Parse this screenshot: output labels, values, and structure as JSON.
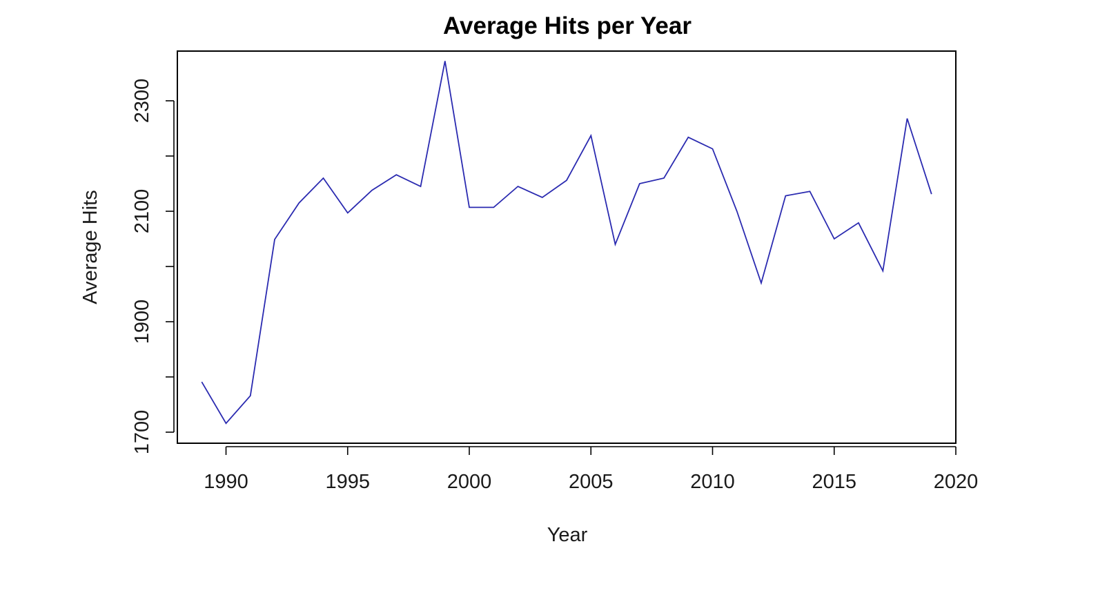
{
  "chart_data": {
    "type": "line",
    "title": "Average Hits per Year",
    "xlabel": "Year",
    "ylabel": "Average Hits",
    "xlim": [
      1988,
      2020
    ],
    "ylim": [
      1680,
      2390
    ],
    "x_ticks": [
      1990,
      1995,
      2000,
      2005,
      2010,
      2015,
      2020
    ],
    "y_ticks": [
      1700,
      1900,
      2100,
      2300
    ],
    "y_minor_ticks": [
      1800,
      2000,
      2200
    ],
    "grid": false,
    "legend": "none",
    "colors": {
      "line": "#2a2ab0",
      "frame": "#000000"
    },
    "series": [
      {
        "x": [
          1989,
          1990,
          1991,
          1992,
          1993,
          1994,
          1995,
          1996,
          1997,
          1998,
          1999,
          2000,
          2001,
          2002,
          2003,
          2004,
          2005,
          2006,
          2007,
          2008,
          2009,
          2010,
          2011,
          2012,
          2013,
          2014,
          2015,
          2016,
          2017,
          2018,
          2019
        ],
        "values": [
          1791,
          1716,
          1766,
          2049,
          2115,
          2160,
          2097,
          2138,
          2166,
          2145,
          2372,
          2107,
          2107,
          2145,
          2125,
          2156,
          2237,
          2040,
          2150,
          2160,
          2234,
          2213,
          2100,
          1970,
          2128,
          2136,
          2050,
          2079,
          1992,
          2268,
          2131
        ]
      }
    ]
  }
}
